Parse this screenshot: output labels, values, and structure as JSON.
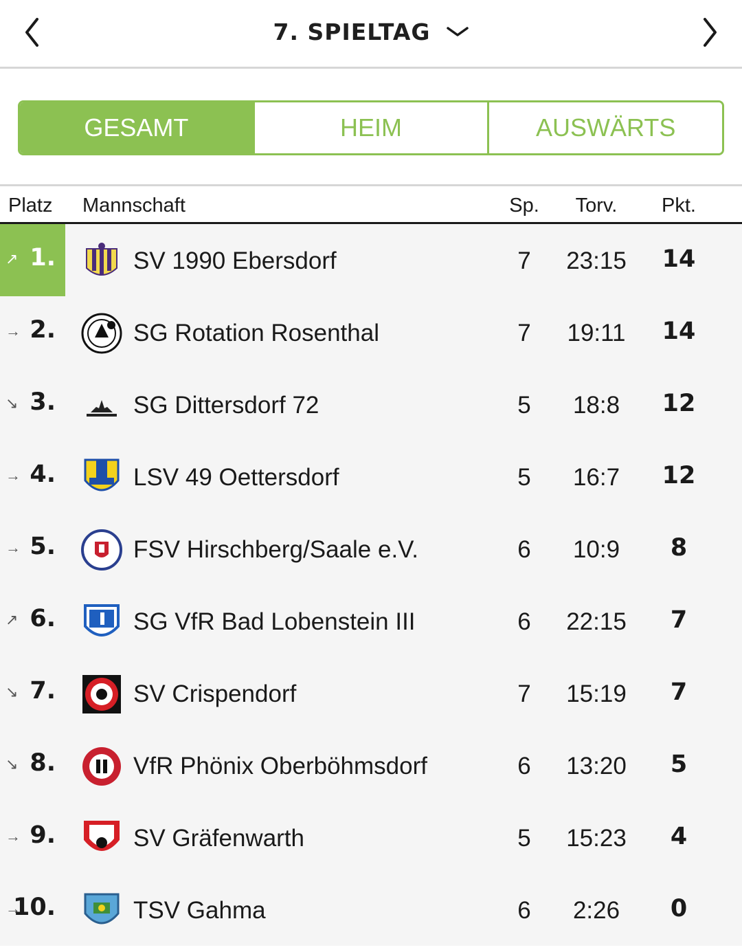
{
  "header": {
    "prev_icon": "chevron-left-icon",
    "next_icon": "chevron-right-icon",
    "matchday_label": "7. SPIELTAG",
    "dropdown_icon": "chevron-down-icon"
  },
  "tabs": [
    {
      "label": "GESAMT",
      "active": true
    },
    {
      "label": "HEIM",
      "active": false
    },
    {
      "label": "AUSWÄRTS",
      "active": false
    }
  ],
  "columns": {
    "platz": "Platz",
    "mannschaft": "Mannschaft",
    "sp": "Sp.",
    "torv": "Torv.",
    "pkt": "Pkt."
  },
  "colors": {
    "accent": "#8cc152",
    "row_bg": "#f5f5f5"
  },
  "standings": [
    {
      "rank": "1.",
      "trend": "↗",
      "team": "SV 1990 Ebersdorf",
      "sp": "7",
      "torv": "23:15",
      "pkt": "14"
    },
    {
      "rank": "2.",
      "trend": "→",
      "team": "SG Rotation Rosenthal",
      "sp": "7",
      "torv": "19:11",
      "pkt": "14"
    },
    {
      "rank": "3.",
      "trend": "↘",
      "team": "SG Dittersdorf 72",
      "sp": "5",
      "torv": "18:8",
      "pkt": "12"
    },
    {
      "rank": "4.",
      "trend": "→",
      "team": "LSV 49 Oettersdorf",
      "sp": "5",
      "torv": "16:7",
      "pkt": "12"
    },
    {
      "rank": "5.",
      "trend": "→",
      "team": "FSV Hirschberg/Saale e.V.",
      "sp": "6",
      "torv": "10:9",
      "pkt": "8"
    },
    {
      "rank": "6.",
      "trend": "↗",
      "team": "SG VfR Bad Lobenstein III",
      "sp": "6",
      "torv": "22:15",
      "pkt": "7"
    },
    {
      "rank": "7.",
      "trend": "↘",
      "team": "SV Crispendorf",
      "sp": "7",
      "torv": "15:19",
      "pkt": "7"
    },
    {
      "rank": "8.",
      "trend": "↘",
      "team": "VfR Phönix Oberböhmsdorf",
      "sp": "6",
      "torv": "13:20",
      "pkt": "5"
    },
    {
      "rank": "9.",
      "trend": "→",
      "team": "SV Gräfenwarth",
      "sp": "5",
      "torv": "15:23",
      "pkt": "4"
    },
    {
      "rank": "10.",
      "trend": "→",
      "team": "TSV Gahma",
      "sp": "6",
      "torv": "2:26",
      "pkt": "0"
    }
  ]
}
